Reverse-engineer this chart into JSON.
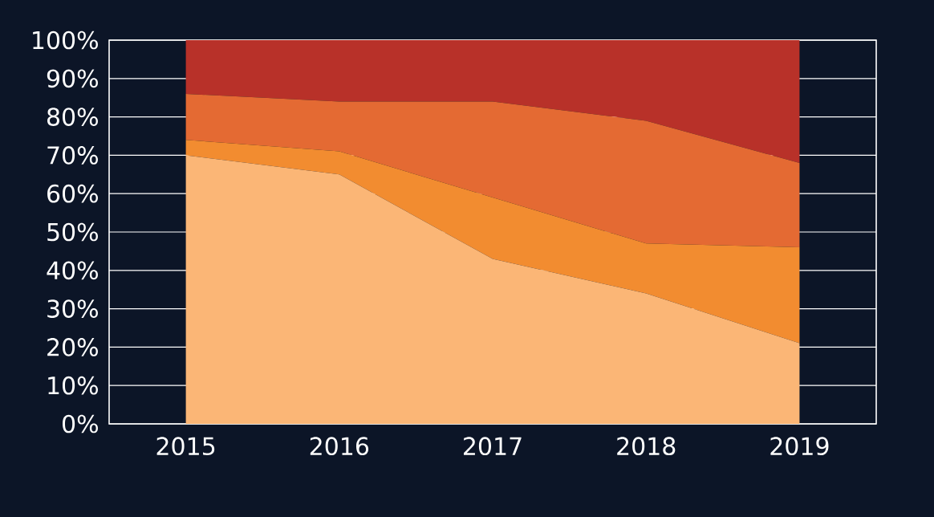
{
  "chart_data": {
    "type": "area",
    "stacked": true,
    "categories": [
      "2015",
      "2016",
      "2017",
      "2018",
      "2019"
    ],
    "series": [
      {
        "color": "#fbb676",
        "values": [
          70,
          65,
          43,
          34,
          21
        ]
      },
      {
        "color": "#f28c30",
        "values": [
          4,
          6,
          16,
          13,
          25
        ]
      },
      {
        "color": "#e46a33",
        "values": [
          12,
          13,
          25,
          32,
          22
        ]
      },
      {
        "color": "#b83129",
        "values": [
          14,
          16,
          16,
          21,
          32
        ]
      }
    ],
    "ylim": [
      0,
      100
    ],
    "yticks": [
      {
        "value": 0,
        "label": "0%"
      },
      {
        "value": 10,
        "label": "10%"
      },
      {
        "value": 20,
        "label": "20%"
      },
      {
        "value": 30,
        "label": "30%"
      },
      {
        "value": 40,
        "label": "40%"
      },
      {
        "value": 50,
        "label": "50%"
      },
      {
        "value": 60,
        "label": "60%"
      },
      {
        "value": 70,
        "label": "70%"
      },
      {
        "value": 80,
        "label": "80%"
      },
      {
        "value": 90,
        "label": "90%"
      },
      {
        "value": 100,
        "label": "100%"
      }
    ],
    "grid": "y"
  }
}
